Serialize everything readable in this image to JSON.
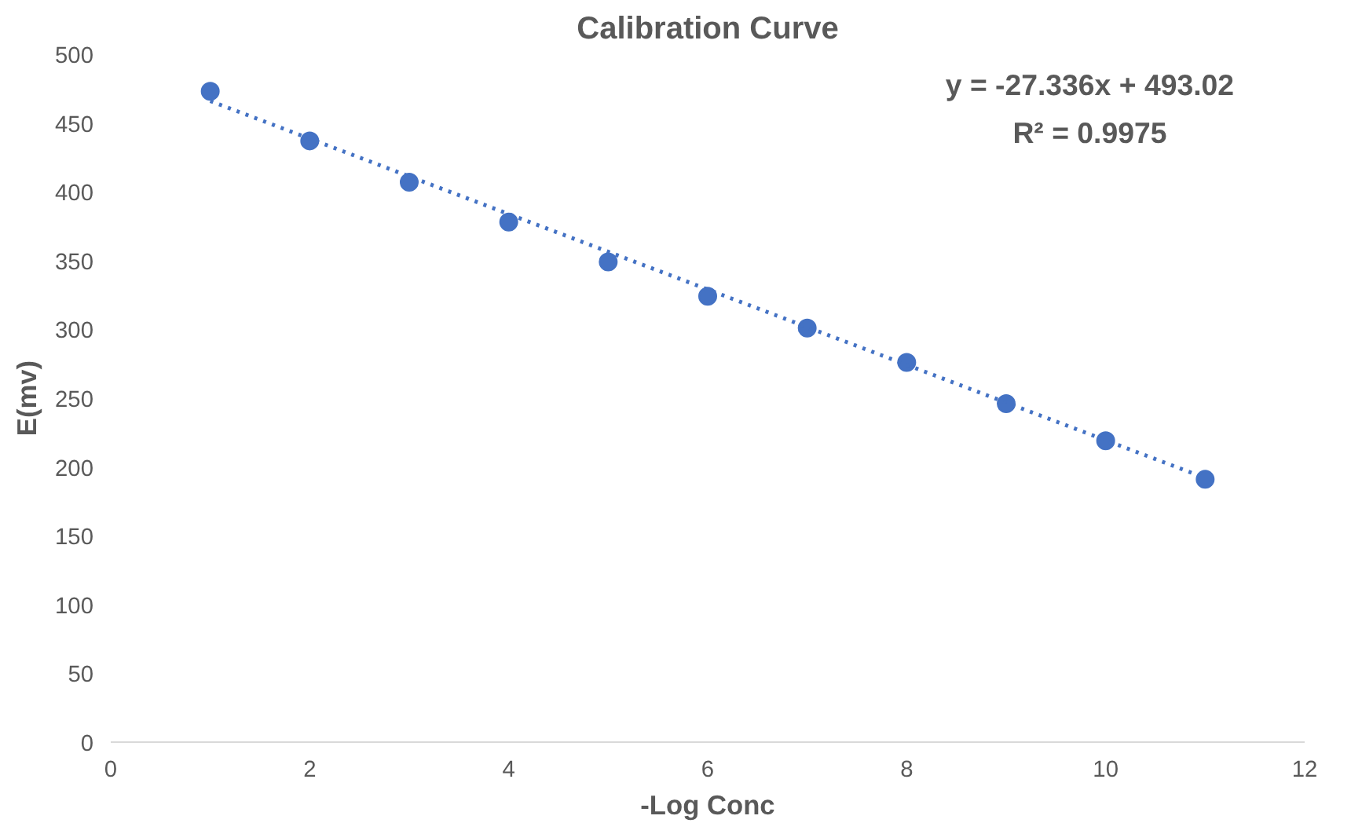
{
  "chart_data": {
    "type": "scatter",
    "title": "Calibration Curve",
    "xlabel": "-Log Conc",
    "ylabel": "E(mv)",
    "x": [
      1,
      2,
      3,
      4,
      5,
      6,
      7,
      8,
      9,
      10,
      11
    ],
    "series": [
      {
        "color": "#4472c4",
        "marker": "circle",
        "values": [
          473,
          437,
          407,
          378,
          349,
          324,
          301,
          276,
          246,
          219,
          191
        ]
      },
      {
        "type": "line",
        "color": "#4472c4",
        "line_style": "dotted",
        "marker": "none",
        "x": [
          1,
          11
        ],
        "values": [
          466,
          192
        ]
      }
    ],
    "xlim": [
      0,
      12
    ],
    "xticks": [
      0,
      2,
      4,
      6,
      8,
      10,
      12
    ],
    "ylim": [
      0,
      500
    ],
    "yticks": [
      0,
      50,
      100,
      150,
      200,
      250,
      300,
      350,
      400,
      450,
      500
    ],
    "grid": false,
    "legend": false,
    "annotations": [
      "y = -27.336x + 493.02",
      "R² = 0.9975"
    ]
  }
}
